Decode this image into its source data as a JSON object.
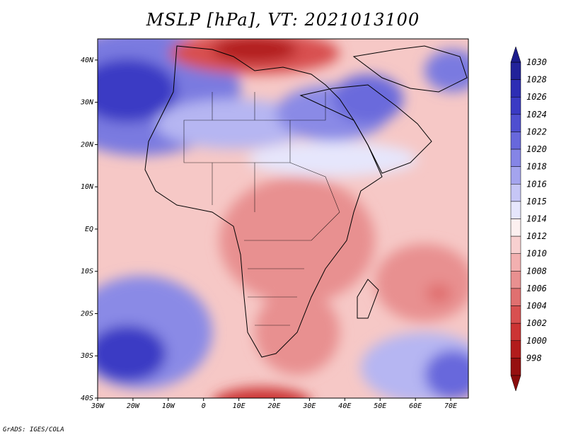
{
  "title": "MSLP [hPa], VT: 2021013100",
  "credit": "GrADS: IGES/COLA",
  "map": {
    "region": "Africa",
    "variable": "MSLP",
    "units": "hPa",
    "valid_time": "2021013100",
    "lon_range": [
      -30,
      75
    ],
    "lat_range": [
      -40,
      45
    ],
    "lon_ticks": [
      {
        "value": -30,
        "label": "30W"
      },
      {
        "value": -20,
        "label": "20W"
      },
      {
        "value": -10,
        "label": "10W"
      },
      {
        "value": 0,
        "label": "0"
      },
      {
        "value": 10,
        "label": "10E"
      },
      {
        "value": 20,
        "label": "20E"
      },
      {
        "value": 30,
        "label": "30E"
      },
      {
        "value": 40,
        "label": "40E"
      },
      {
        "value": 50,
        "label": "50E"
      },
      {
        "value": 60,
        "label": "60E"
      },
      {
        "value": 70,
        "label": "70E"
      }
    ],
    "lat_ticks": [
      {
        "value": 40,
        "label": "40N"
      },
      {
        "value": 30,
        "label": "30N"
      },
      {
        "value": 20,
        "label": "20N"
      },
      {
        "value": 10,
        "label": "10N"
      },
      {
        "value": 0,
        "label": "EQ"
      },
      {
        "value": -10,
        "label": "10S"
      },
      {
        "value": -20,
        "label": "20S"
      },
      {
        "value": -30,
        "label": "30S"
      },
      {
        "value": -40,
        "label": "40S"
      }
    ]
  },
  "colorbar": {
    "labels": [
      "1030",
      "1028",
      "1026",
      "1024",
      "1022",
      "1020",
      "1018",
      "1016",
      "1015",
      "1014",
      "1012",
      "1010",
      "1008",
      "1006",
      "1004",
      "1002",
      "1000",
      "998"
    ],
    "colors": [
      "#22229a",
      "#2d2db4",
      "#3a3ac4",
      "#4f4fd0",
      "#6868dc",
      "#8585e6",
      "#a4a4ee",
      "#c6c6f6",
      "#e6e6fc",
      "#fcf0f0",
      "#f8d0d0",
      "#f2b0b0",
      "#e89090",
      "#e07070",
      "#d85050",
      "#cc3434",
      "#b21c1c",
      "#961010"
    ]
  }
}
